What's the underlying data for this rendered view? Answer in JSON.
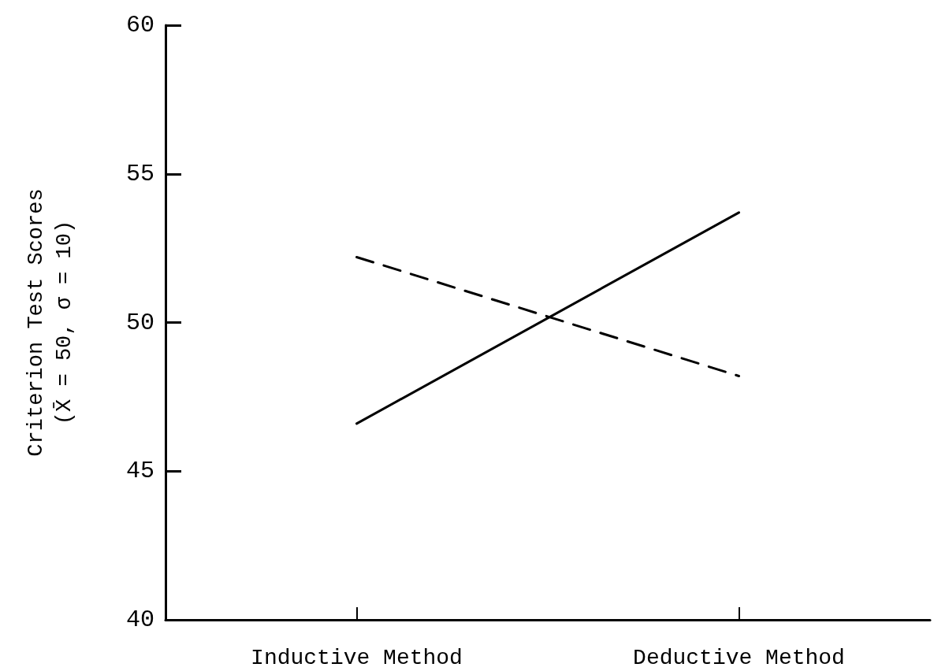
{
  "chart_data": {
    "type": "line",
    "ylabel": "Criterion Test Scores\n(X̄ = 50, σ = 10)",
    "categories": [
      "Inductive Method",
      "Deductive Method"
    ],
    "series": [
      {
        "color": "#000000",
        "values": [
          46.6,
          53.7
        ],
        "line_style": "solid"
      },
      {
        "color": "#000000",
        "values": [
          52.2,
          48.2
        ],
        "line_style": "dashed"
      }
    ],
    "ylim": [
      40,
      60
    ],
    "yticks": [
      40,
      45,
      50,
      55,
      60
    ],
    "grid": false,
    "marker": "none"
  }
}
